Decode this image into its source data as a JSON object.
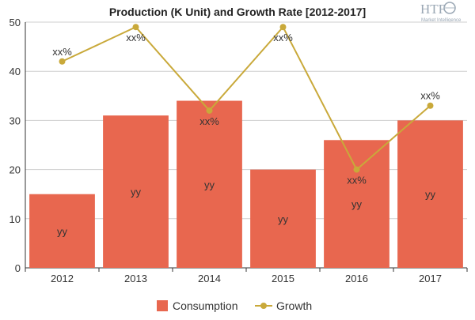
{
  "chart_data": {
    "type": "bar",
    "title": "Production (K Unit) and Growth Rate [2012-2017]",
    "categories": [
      "2012",
      "2013",
      "2014",
      "2015",
      "2016",
      "2017"
    ],
    "ylim": [
      0,
      50
    ],
    "yticks": [
      "0",
      "10",
      "20",
      "30",
      "40",
      "50"
    ],
    "grid": true,
    "legend_position": "bottom-center",
    "series": [
      {
        "name": "Consumption",
        "type": "bar",
        "color": "#e8674f",
        "values": [
          15,
          31,
          34,
          20,
          26,
          30
        ],
        "labels": [
          "yy",
          "yy",
          "yy",
          "yy",
          "yy",
          "yy"
        ]
      },
      {
        "name": "Growth",
        "type": "line",
        "color": "#c9a93a",
        "values": [
          42,
          49,
          32,
          49,
          20,
          33
        ],
        "labels": [
          "xx%",
          "xx%",
          "xx%",
          "xx%",
          "xx%",
          "xx%"
        ]
      }
    ]
  },
  "logo": {
    "main_text": "HTF",
    "sub_text": "Market Intelligence"
  }
}
